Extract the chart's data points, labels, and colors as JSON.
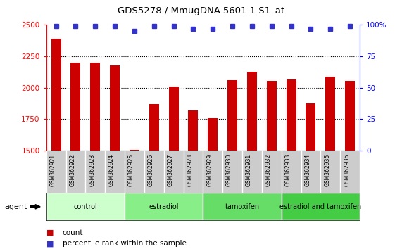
{
  "title": "GDS5278 / MmugDNA.5601.1.S1_at",
  "samples": [
    "GSM362921",
    "GSM362922",
    "GSM362923",
    "GSM362924",
    "GSM362925",
    "GSM362926",
    "GSM362927",
    "GSM362928",
    "GSM362929",
    "GSM362930",
    "GSM362931",
    "GSM362932",
    "GSM362933",
    "GSM362934",
    "GSM362935",
    "GSM362936"
  ],
  "counts": [
    2390,
    2200,
    2200,
    2180,
    1505,
    1870,
    2010,
    1820,
    1760,
    2060,
    2130,
    2055,
    2065,
    1875,
    2090,
    2055
  ],
  "percentile_ranks": [
    99,
    99,
    99,
    99,
    95,
    99,
    99,
    97,
    97,
    99,
    99,
    99,
    99,
    97,
    97,
    99
  ],
  "ylim_left": [
    1500,
    2500
  ],
  "ylim_right": [
    0,
    100
  ],
  "yticks_left": [
    1500,
    1750,
    2000,
    2250,
    2500
  ],
  "yticks_right": [
    0,
    25,
    50,
    75,
    100
  ],
  "bar_color": "#cc0000",
  "dot_color": "#3333cc",
  "groups": [
    {
      "label": "control",
      "start": 0,
      "end": 4,
      "color": "#ccffcc"
    },
    {
      "label": "estradiol",
      "start": 4,
      "end": 8,
      "color": "#88ee88"
    },
    {
      "label": "tamoxifen",
      "start": 8,
      "end": 12,
      "color": "#66dd66"
    },
    {
      "label": "estradiol and tamoxifen",
      "start": 12,
      "end": 16,
      "color": "#44cc44"
    }
  ],
  "legend_count_color": "#cc0000",
  "legend_dot_color": "#3333cc",
  "xtick_bg_color": "#cccccc",
  "bar_width": 0.5
}
